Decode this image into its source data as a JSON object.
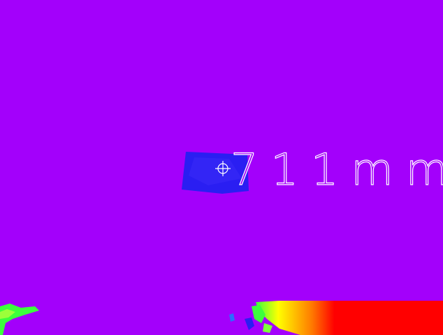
{
  "measurement": {
    "value": "711",
    "unit": "mm"
  },
  "colors": {
    "background": "#a300fb",
    "near_object": "#2a1ef2",
    "overlay_text": "#ffffff",
    "hot": "#ff0000",
    "warm": "#ffff00",
    "mid": "#3cff3c"
  },
  "icons": {
    "reticle": "crosshair-icon"
  }
}
